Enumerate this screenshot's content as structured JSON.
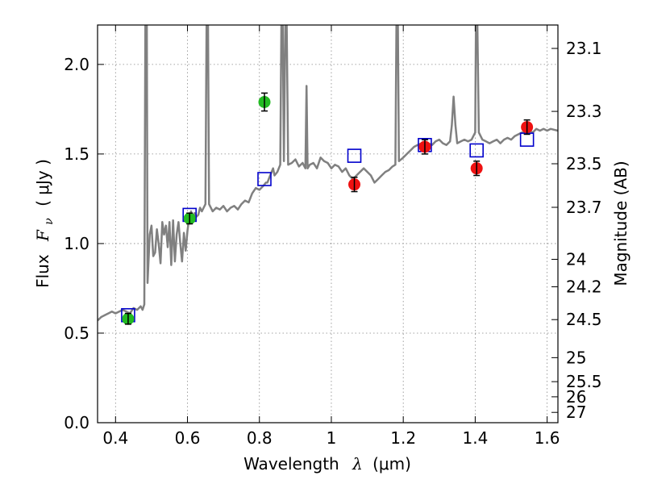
{
  "chart_data": {
    "type": "scatter",
    "xlabel": {
      "main": "Wavelength",
      "symbol": "λ",
      "unit": "(μm)"
    },
    "ylabel": {
      "main": "Flux",
      "symbol": "F",
      "subscript": "ν",
      "unit": "( μJy )"
    },
    "y2label": "Magnitude (AB)",
    "xlim": [
      0.35,
      1.63
    ],
    "ylim": [
      0.0,
      2.22
    ],
    "grid": true,
    "x_ticks": [
      {
        "value": 0.4,
        "label": "0.4"
      },
      {
        "value": 0.6,
        "label": "0.6"
      },
      {
        "value": 0.8,
        "label": "0.8"
      },
      {
        "value": 1.0,
        "label": "1"
      },
      {
        "value": 1.2,
        "label": "1.2"
      },
      {
        "value": 1.4,
        "label": "1.4"
      },
      {
        "value": 1.6,
        "label": "1.6"
      }
    ],
    "y_ticks": [
      {
        "value": 0.0,
        "label": "0.0"
      },
      {
        "value": 0.5,
        "label": "0.5"
      },
      {
        "value": 1.0,
        "label": "1.0"
      },
      {
        "value": 1.5,
        "label": "1.5"
      },
      {
        "value": 2.0,
        "label": "2.0"
      }
    ],
    "y2_ticks": [
      {
        "value": 23.1,
        "label": "23.1"
      },
      {
        "value": 23.3,
        "label": "23.3"
      },
      {
        "value": 23.5,
        "label": "23.5"
      },
      {
        "value": 23.7,
        "label": "23.7"
      },
      {
        "value": 24.0,
        "label": "24"
      },
      {
        "value": 24.2,
        "label": "24.2"
      },
      {
        "value": 24.5,
        "label": "24.5"
      },
      {
        "value": 25.0,
        "label": "25"
      },
      {
        "value": 25.5,
        "label": "25.5"
      },
      {
        "value": 26.0,
        "label": "26"
      },
      {
        "value": 27.0,
        "label": "27"
      }
    ],
    "colors": {
      "spectrum": "#808080",
      "green": "#22bb22",
      "red": "#ee1111",
      "model": "#0000cc",
      "errorbar": "#000000",
      "grid": "#888888"
    },
    "series": [
      {
        "kind": "line",
        "points": [
          [
            0.35,
            0.57
          ],
          [
            0.36,
            0.59
          ],
          [
            0.37,
            0.6
          ],
          [
            0.38,
            0.61
          ],
          [
            0.39,
            0.62
          ],
          [
            0.4,
            0.61
          ],
          [
            0.41,
            0.62
          ],
          [
            0.42,
            0.63
          ],
          [
            0.43,
            0.62
          ],
          [
            0.44,
            0.61
          ],
          [
            0.45,
            0.64
          ],
          [
            0.46,
            0.63
          ],
          [
            0.47,
            0.65
          ],
          [
            0.475,
            0.63
          ],
          [
            0.48,
            0.66
          ],
          [
            0.483,
            2.22
          ],
          [
            0.487,
            2.22
          ],
          [
            0.489,
            0.78
          ],
          [
            0.495,
            1.05
          ],
          [
            0.5,
            1.1
          ],
          [
            0.505,
            0.93
          ],
          [
            0.51,
            0.95
          ],
          [
            0.515,
            1.08
          ],
          [
            0.52,
            1.0
          ],
          [
            0.525,
            0.89
          ],
          [
            0.53,
            1.12
          ],
          [
            0.535,
            1.05
          ],
          [
            0.54,
            1.1
          ],
          [
            0.545,
            0.98
          ],
          [
            0.55,
            1.12
          ],
          [
            0.555,
            0.88
          ],
          [
            0.56,
            1.13
          ],
          [
            0.565,
            0.9
          ],
          [
            0.57,
            1.05
          ],
          [
            0.575,
            1.12
          ],
          [
            0.58,
            1.0
          ],
          [
            0.585,
            0.9
          ],
          [
            0.59,
            1.06
          ],
          [
            0.595,
            0.96
          ],
          [
            0.6,
            1.07
          ],
          [
            0.605,
            1.15
          ],
          [
            0.61,
            1.18
          ],
          [
            0.615,
            1.13
          ],
          [
            0.62,
            1.17
          ],
          [
            0.625,
            1.15
          ],
          [
            0.63,
            1.16
          ],
          [
            0.635,
            1.2
          ],
          [
            0.64,
            1.18
          ],
          [
            0.645,
            1.2
          ],
          [
            0.65,
            1.22
          ],
          [
            0.653,
            2.22
          ],
          [
            0.657,
            2.22
          ],
          [
            0.66,
            1.22
          ],
          [
            0.67,
            1.18
          ],
          [
            0.68,
            1.2
          ],
          [
            0.69,
            1.19
          ],
          [
            0.7,
            1.21
          ],
          [
            0.71,
            1.18
          ],
          [
            0.72,
            1.2
          ],
          [
            0.73,
            1.21
          ],
          [
            0.74,
            1.19
          ],
          [
            0.75,
            1.22
          ],
          [
            0.76,
            1.24
          ],
          [
            0.77,
            1.23
          ],
          [
            0.78,
            1.28
          ],
          [
            0.79,
            1.31
          ],
          [
            0.8,
            1.3
          ],
          [
            0.81,
            1.32
          ],
          [
            0.818,
            1.34
          ],
          [
            0.822,
            1.34
          ],
          [
            0.83,
            1.38
          ],
          [
            0.838,
            1.42
          ],
          [
            0.842,
            1.38
          ],
          [
            0.85,
            1.4
          ],
          [
            0.858,
            1.44
          ],
          [
            0.861,
            2.22
          ],
          [
            0.865,
            2.22
          ],
          [
            0.868,
            1.46
          ],
          [
            0.872,
            2.22
          ],
          [
            0.876,
            2.22
          ],
          [
            0.88,
            1.44
          ],
          [
            0.89,
            1.45
          ],
          [
            0.9,
            1.47
          ],
          [
            0.91,
            1.43
          ],
          [
            0.92,
            1.45
          ],
          [
            0.928,
            1.42
          ],
          [
            0.931,
            1.88
          ],
          [
            0.934,
            1.42
          ],
          [
            0.94,
            1.44
          ],
          [
            0.95,
            1.45
          ],
          [
            0.96,
            1.42
          ],
          [
            0.97,
            1.48
          ],
          [
            0.98,
            1.46
          ],
          [
            0.99,
            1.45
          ],
          [
            1.0,
            1.42
          ],
          [
            1.01,
            1.44
          ],
          [
            1.02,
            1.43
          ],
          [
            1.03,
            1.4
          ],
          [
            1.04,
            1.42
          ],
          [
            1.05,
            1.38
          ],
          [
            1.06,
            1.36
          ],
          [
            1.07,
            1.38
          ],
          [
            1.08,
            1.4
          ],
          [
            1.09,
            1.42
          ],
          [
            1.1,
            1.4
          ],
          [
            1.11,
            1.38
          ],
          [
            1.12,
            1.34
          ],
          [
            1.13,
            1.36
          ],
          [
            1.14,
            1.38
          ],
          [
            1.15,
            1.4
          ],
          [
            1.16,
            1.41
          ],
          [
            1.17,
            1.43
          ],
          [
            1.178,
            1.44
          ],
          [
            1.181,
            2.22
          ],
          [
            1.185,
            2.22
          ],
          [
            1.188,
            1.46
          ],
          [
            1.2,
            1.48
          ],
          [
            1.21,
            1.5
          ],
          [
            1.22,
            1.52
          ],
          [
            1.23,
            1.54
          ],
          [
            1.24,
            1.55
          ],
          [
            1.25,
            1.56
          ],
          [
            1.26,
            1.57
          ],
          [
            1.27,
            1.56
          ],
          [
            1.28,
            1.55
          ],
          [
            1.29,
            1.57
          ],
          [
            1.3,
            1.58
          ],
          [
            1.31,
            1.56
          ],
          [
            1.32,
            1.55
          ],
          [
            1.33,
            1.57
          ],
          [
            1.335,
            1.66
          ],
          [
            1.34,
            1.82
          ],
          [
            1.345,
            1.66
          ],
          [
            1.35,
            1.56
          ],
          [
            1.36,
            1.57
          ],
          [
            1.37,
            1.58
          ],
          [
            1.38,
            1.57
          ],
          [
            1.39,
            1.58
          ],
          [
            1.4,
            1.62
          ],
          [
            1.402,
            2.22
          ],
          [
            1.406,
            2.22
          ],
          [
            1.41,
            1.62
          ],
          [
            1.42,
            1.58
          ],
          [
            1.43,
            1.57
          ],
          [
            1.44,
            1.56
          ],
          [
            1.45,
            1.57
          ],
          [
            1.46,
            1.58
          ],
          [
            1.47,
            1.56
          ],
          [
            1.48,
            1.58
          ],
          [
            1.49,
            1.59
          ],
          [
            1.5,
            1.58
          ],
          [
            1.51,
            1.6
          ],
          [
            1.52,
            1.61
          ],
          [
            1.53,
            1.62
          ],
          [
            1.54,
            1.62
          ],
          [
            1.55,
            1.63
          ],
          [
            1.56,
            1.62
          ],
          [
            1.57,
            1.64
          ],
          [
            1.58,
            1.63
          ],
          [
            1.59,
            1.64
          ],
          [
            1.6,
            1.63
          ],
          [
            1.61,
            1.64
          ],
          [
            1.63,
            1.63
          ]
        ]
      },
      {
        "kind": "points_green",
        "points": [
          {
            "x": 0.435,
            "y": 0.58,
            "err": 0.03
          },
          {
            "x": 0.606,
            "y": 1.14,
            "err": 0.03
          },
          {
            "x": 0.814,
            "y": 1.79,
            "err": 0.05
          }
        ]
      },
      {
        "kind": "points_red",
        "points": [
          {
            "x": 1.064,
            "y": 1.33,
            "err": 0.04
          },
          {
            "x": 1.26,
            "y": 1.54,
            "err": 0.04
          },
          {
            "x": 1.404,
            "y": 1.42,
            "err": 0.04
          },
          {
            "x": 1.544,
            "y": 1.65,
            "err": 0.04
          }
        ]
      },
      {
        "kind": "squares",
        "points": [
          {
            "x": 0.435,
            "y": 0.6
          },
          {
            "x": 0.606,
            "y": 1.16
          },
          {
            "x": 0.814,
            "y": 1.36
          },
          {
            "x": 1.064,
            "y": 1.49
          },
          {
            "x": 1.26,
            "y": 1.55
          },
          {
            "x": 1.404,
            "y": 1.52
          },
          {
            "x": 1.544,
            "y": 1.58
          }
        ]
      }
    ]
  }
}
